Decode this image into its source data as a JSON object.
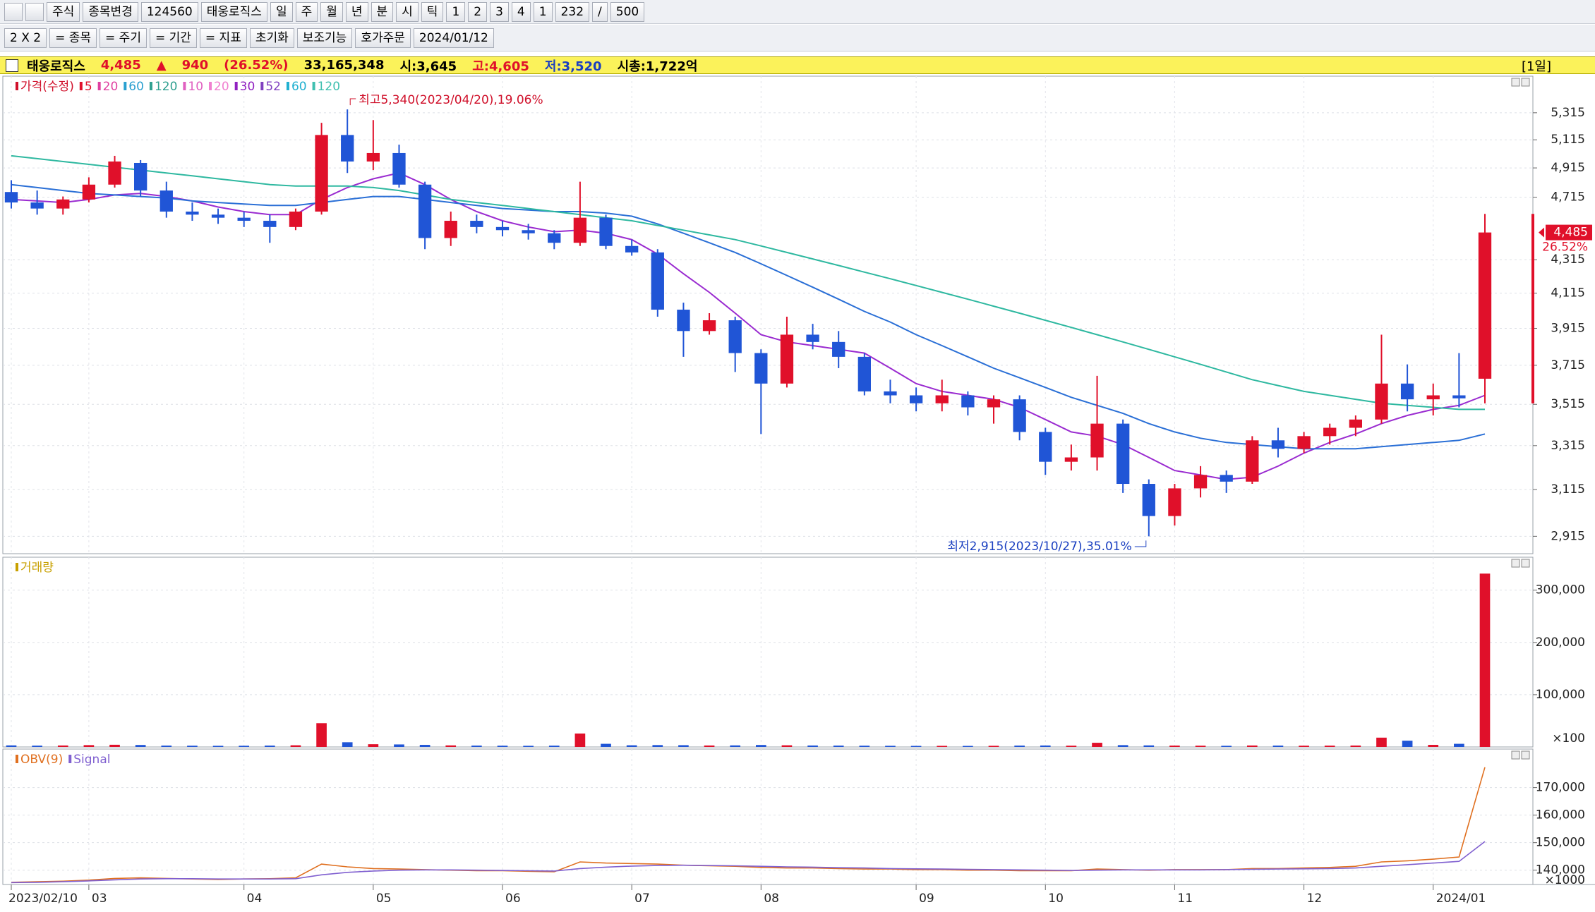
{
  "toolbar": {
    "row1": [
      "주식",
      "종목변경",
      "124560",
      "태웅로직스",
      "일",
      "주",
      "월",
      "년",
      "분",
      "시",
      "틱",
      "1",
      "2",
      "3",
      "4",
      "1",
      "232",
      "/",
      "500"
    ],
    "row2": [
      "2 X 2",
      "= 종목",
      "= 주기",
      "= 기간",
      "= 지표",
      "초기화",
      "보조기능",
      "호가주문",
      "2024/01/12"
    ]
  },
  "info_bar": {
    "items": [
      {
        "text": "태웅로직스",
        "color": "#000000"
      },
      {
        "text": "4,485",
        "color": "#e0102a"
      },
      {
        "text": "▲",
        "color": "#e0102a"
      },
      {
        "text": "940",
        "color": "#e0102a"
      },
      {
        "text": "(26.52%)",
        "color": "#e0102a"
      },
      {
        "text": "33,165,348",
        "color": "#000000"
      },
      {
        "text": "시:3,645",
        "color": "#000000"
      },
      {
        "text": "고:4,605",
        "color": "#e0102a"
      },
      {
        "text": "저:3,520",
        "color": "#1a3fc0"
      },
      {
        "text": "시총:1,722억",
        "color": "#000000"
      }
    ],
    "period": "[1일]"
  },
  "chart_data": [
    {
      "type": "candlestick",
      "log_scale": true,
      "grid": true,
      "up_color": "#e0102a",
      "down_color": "#2055d6",
      "categories": [
        "2023/02/10",
        null,
        null,
        "03",
        null,
        null,
        null,
        null,
        null,
        "04",
        null,
        null,
        null,
        null,
        "05",
        null,
        null,
        null,
        null,
        "06",
        null,
        null,
        null,
        null,
        "07",
        null,
        null,
        null,
        null,
        "08",
        null,
        null,
        null,
        null,
        null,
        "09",
        null,
        null,
        null,
        null,
        "10",
        null,
        null,
        null,
        null,
        "11",
        null,
        null,
        null,
        null,
        "12",
        null,
        null,
        null,
        null,
        "2024/01",
        null,
        null
      ],
      "open": [
        4750,
        4680,
        4640,
        4700,
        4800,
        4950,
        4760,
        4620,
        4600,
        4580,
        4560,
        4520,
        4620,
        5150,
        4960,
        5020,
        4800,
        4450,
        4560,
        4520,
        4500,
        4480,
        4420,
        4580,
        4400,
        4360,
        4020,
        3900,
        3960,
        3780,
        3620,
        3880,
        3840,
        3760,
        3580,
        3560,
        3520,
        3560,
        3500,
        3540,
        3380,
        3240,
        3260,
        3420,
        3140,
        3000,
        3120,
        3180,
        3150,
        3340,
        3300,
        3360,
        3400,
        3440,
        3620,
        3540,
        3560,
        3645
      ],
      "high": [
        4830,
        4760,
        4720,
        4850,
        5000,
        4970,
        4820,
        4680,
        4640,
        4620,
        4600,
        4640,
        5240,
        5340,
        5260,
        5080,
        4820,
        4620,
        4600,
        4560,
        4540,
        4500,
        4820,
        4600,
        4440,
        4380,
        4060,
        4000,
        3980,
        3800,
        3980,
        3940,
        3900,
        3780,
        3640,
        3600,
        3640,
        3580,
        3560,
        3560,
        3400,
        3320,
        3660,
        3440,
        3160,
        3140,
        3220,
        3200,
        3360,
        3400,
        3380,
        3420,
        3460,
        3880,
        3720,
        3620,
        3780,
        4605
      ],
      "low": [
        4640,
        4600,
        4600,
        4680,
        4780,
        4720,
        4580,
        4560,
        4540,
        4520,
        4420,
        4500,
        4600,
        4880,
        4900,
        4780,
        4380,
        4400,
        4480,
        4460,
        4440,
        4380,
        4400,
        4380,
        4340,
        3980,
        3760,
        3880,
        3680,
        3370,
        3600,
        3800,
        3700,
        3560,
        3520,
        3480,
        3480,
        3460,
        3420,
        3340,
        3180,
        3200,
        3200,
        3100,
        2915,
        2960,
        3080,
        3100,
        3140,
        3260,
        3280,
        3320,
        3360,
        3420,
        3480,
        3460,
        3500,
        3520
      ],
      "close": [
        4680,
        4640,
        4700,
        4800,
        4960,
        4760,
        4620,
        4600,
        4580,
        4560,
        4520,
        4620,
        5150,
        4960,
        5020,
        4800,
        4450,
        4560,
        4520,
        4500,
        4480,
        4420,
        4580,
        4400,
        4360,
        4020,
        3900,
        3960,
        3780,
        3620,
        3880,
        3840,
        3760,
        3580,
        3560,
        3520,
        3560,
        3500,
        3540,
        3380,
        3240,
        3260,
        3420,
        3140,
        3000,
        3120,
        3180,
        3150,
        3340,
        3300,
        3360,
        3400,
        3440,
        3620,
        3540,
        3560,
        3545,
        4485
      ],
      "series": [
        {
          "name": "20",
          "color": "#9a2bd0",
          "values": [
            4700,
            4690,
            4680,
            4700,
            4730,
            4740,
            4720,
            4690,
            4650,
            4620,
            4600,
            4600,
            4700,
            4780,
            4840,
            4880,
            4800,
            4700,
            4620,
            4560,
            4520,
            4490,
            4500,
            4480,
            4440,
            4350,
            4230,
            4120,
            4000,
            3880,
            3840,
            3820,
            3800,
            3780,
            3700,
            3620,
            3580,
            3560,
            3540,
            3500,
            3440,
            3380,
            3360,
            3320,
            3260,
            3200,
            3180,
            3160,
            3170,
            3220,
            3280,
            3330,
            3370,
            3420,
            3460,
            3490,
            3510,
            3560
          ]
        },
        {
          "name": "60",
          "color": "#2a6fd6",
          "values": [
            4800,
            4780,
            4760,
            4740,
            4730,
            4720,
            4710,
            4690,
            4680,
            4670,
            4660,
            4660,
            4680,
            4700,
            4720,
            4720,
            4700,
            4680,
            4660,
            4640,
            4630,
            4620,
            4620,
            4610,
            4590,
            4540,
            4480,
            4420,
            4360,
            4290,
            4220,
            4150,
            4080,
            4010,
            3950,
            3880,
            3820,
            3760,
            3700,
            3650,
            3600,
            3550,
            3510,
            3470,
            3420,
            3380,
            3350,
            3330,
            3320,
            3310,
            3300,
            3300,
            3300,
            3310,
            3320,
            3330,
            3340,
            3370
          ]
        },
        {
          "name": "120",
          "color": "#2eb8a0",
          "values": [
            5000,
            4980,
            4960,
            4940,
            4920,
            4900,
            4880,
            4860,
            4840,
            4820,
            4800,
            4790,
            4790,
            4790,
            4780,
            4760,
            4730,
            4700,
            4680,
            4660,
            4640,
            4620,
            4600,
            4580,
            4560,
            4530,
            4500,
            4470,
            4440,
            4400,
            4360,
            4320,
            4280,
            4240,
            4200,
            4160,
            4120,
            4080,
            4040,
            4000,
            3960,
            3920,
            3880,
            3840,
            3800,
            3760,
            3720,
            3680,
            3640,
            3610,
            3580,
            3560,
            3540,
            3520,
            3510,
            3500,
            3490,
            3490
          ]
        }
      ],
      "legend": [
        {
          "name": "가격(수정)",
          "color": "#d0102a"
        },
        {
          "name": "5",
          "color": "#e0102a"
        },
        {
          "name": "20",
          "color": "#e040a0"
        },
        {
          "name": "60",
          "color": "#2aa0d0"
        },
        {
          "name": "120",
          "color": "#30a090"
        },
        {
          "name": "10",
          "color": "#e060c0"
        },
        {
          "name": "20",
          "color": "#f080d0"
        },
        {
          "name": "30",
          "color": "#9020c0"
        },
        {
          "name": "52",
          "color": "#8040c0"
        },
        {
          "name": "60",
          "color": "#20b0d0"
        },
        {
          "name": "120",
          "color": "#40c0b0"
        }
      ],
      "annotations": [
        "최고5,340(2023/04/20),19.06%",
        "최저2,915(2023/10/27),35.01%"
      ],
      "current_price_label": "4,485",
      "current_change_label": "26.52%",
      "ylim": [
        2844,
        5598
      ],
      "yticks": [
        {
          "value": 2915,
          "label": "2,915"
        },
        {
          "value": 3115,
          "label": "3,115"
        },
        {
          "value": 3315,
          "label": "3,315"
        },
        {
          "value": 3515,
          "label": "3,515"
        },
        {
          "value": 3715,
          "label": "3,715"
        },
        {
          "value": 3915,
          "label": "3,915"
        },
        {
          "value": 4115,
          "label": "4,115"
        },
        {
          "value": 4315,
          "label": "4,315"
        },
        {
          "value": 4715,
          "label": "4,715"
        },
        {
          "value": 4915,
          "label": "4,915"
        },
        {
          "value": 5115,
          "label": "5,115"
        },
        {
          "value": 5315,
          "label": "5,315"
        }
      ]
    },
    {
      "type": "bar",
      "title": "거래량",
      "title_color": "#c8a000",
      "unit": "×100",
      "grid": true,
      "values": [
        3000,
        2500,
        2800,
        3500,
        4200,
        3800,
        2600,
        2400,
        2200,
        2300,
        2600,
        3200,
        45500,
        9000,
        5200,
        4800,
        4000,
        3000,
        2600,
        2400,
        2200,
        2500,
        25700,
        6000,
        3200,
        3600,
        3400,
        2800,
        3000,
        3800,
        3200,
        2800,
        2600,
        2400,
        2200,
        2000,
        2100,
        2000,
        2200,
        2600,
        2800,
        2400,
        8000,
        3500,
        3000,
        2600,
        2400,
        2200,
        2800,
        2600,
        2400,
        2500,
        2700,
        17800,
        12000,
        4000,
        6000,
        331653
      ],
      "ylim": [
        0,
        363000
      ],
      "yticks": [
        {
          "value": 100000,
          "label": "100,000"
        },
        {
          "value": 200000,
          "label": "200,000"
        },
        {
          "value": 300000,
          "label": "300,000"
        }
      ]
    },
    {
      "type": "line",
      "unit": "×1000",
      "grid": true,
      "series": [
        {
          "name": "OBV(9)",
          "color": "#e07020",
          "values": [
            135600,
            135800,
            136000,
            136400,
            137000,
            137200,
            137000,
            136800,
            136600,
            136800,
            136900,
            137200,
            142200,
            141200,
            140600,
            140400,
            140200,
            140000,
            139800,
            139800,
            139600,
            139400,
            143000,
            142600,
            142400,
            142200,
            141800,
            141600,
            141400,
            141000,
            140800,
            140800,
            140600,
            140400,
            140400,
            140200,
            140200,
            140000,
            140000,
            139800,
            139800,
            139800,
            140400,
            140200,
            140000,
            140200,
            140200,
            140200,
            140600,
            140600,
            140800,
            141000,
            141400,
            143000,
            143400,
            144000,
            144800,
            177400
          ]
        },
        {
          "name": "Signal",
          "color": "#8060d0",
          "values": [
            135500,
            135600,
            135800,
            136100,
            136500,
            136800,
            136900,
            136900,
            136800,
            136800,
            136800,
            136900,
            138300,
            139200,
            139700,
            140000,
            140100,
            140100,
            140000,
            139900,
            139800,
            139700,
            140600,
            141100,
            141500,
            141700,
            141800,
            141700,
            141600,
            141400,
            141200,
            141100,
            140900,
            140800,
            140600,
            140500,
            140400,
            140300,
            140200,
            140100,
            140000,
            139900,
            140000,
            140100,
            140100,
            140100,
            140100,
            140200,
            140300,
            140400,
            140500,
            140600,
            140800,
            141400,
            142000,
            142600,
            143200,
            150400
          ]
        }
      ],
      "ylim": [
        134800,
        184000
      ],
      "yticks": [
        {
          "value": 140000,
          "label": "140,000"
        },
        {
          "value": 150000,
          "label": "150,000"
        },
        {
          "value": 160000,
          "label": "160,000"
        },
        {
          "value": 170000,
          "label": "170,000"
        }
      ]
    }
  ]
}
